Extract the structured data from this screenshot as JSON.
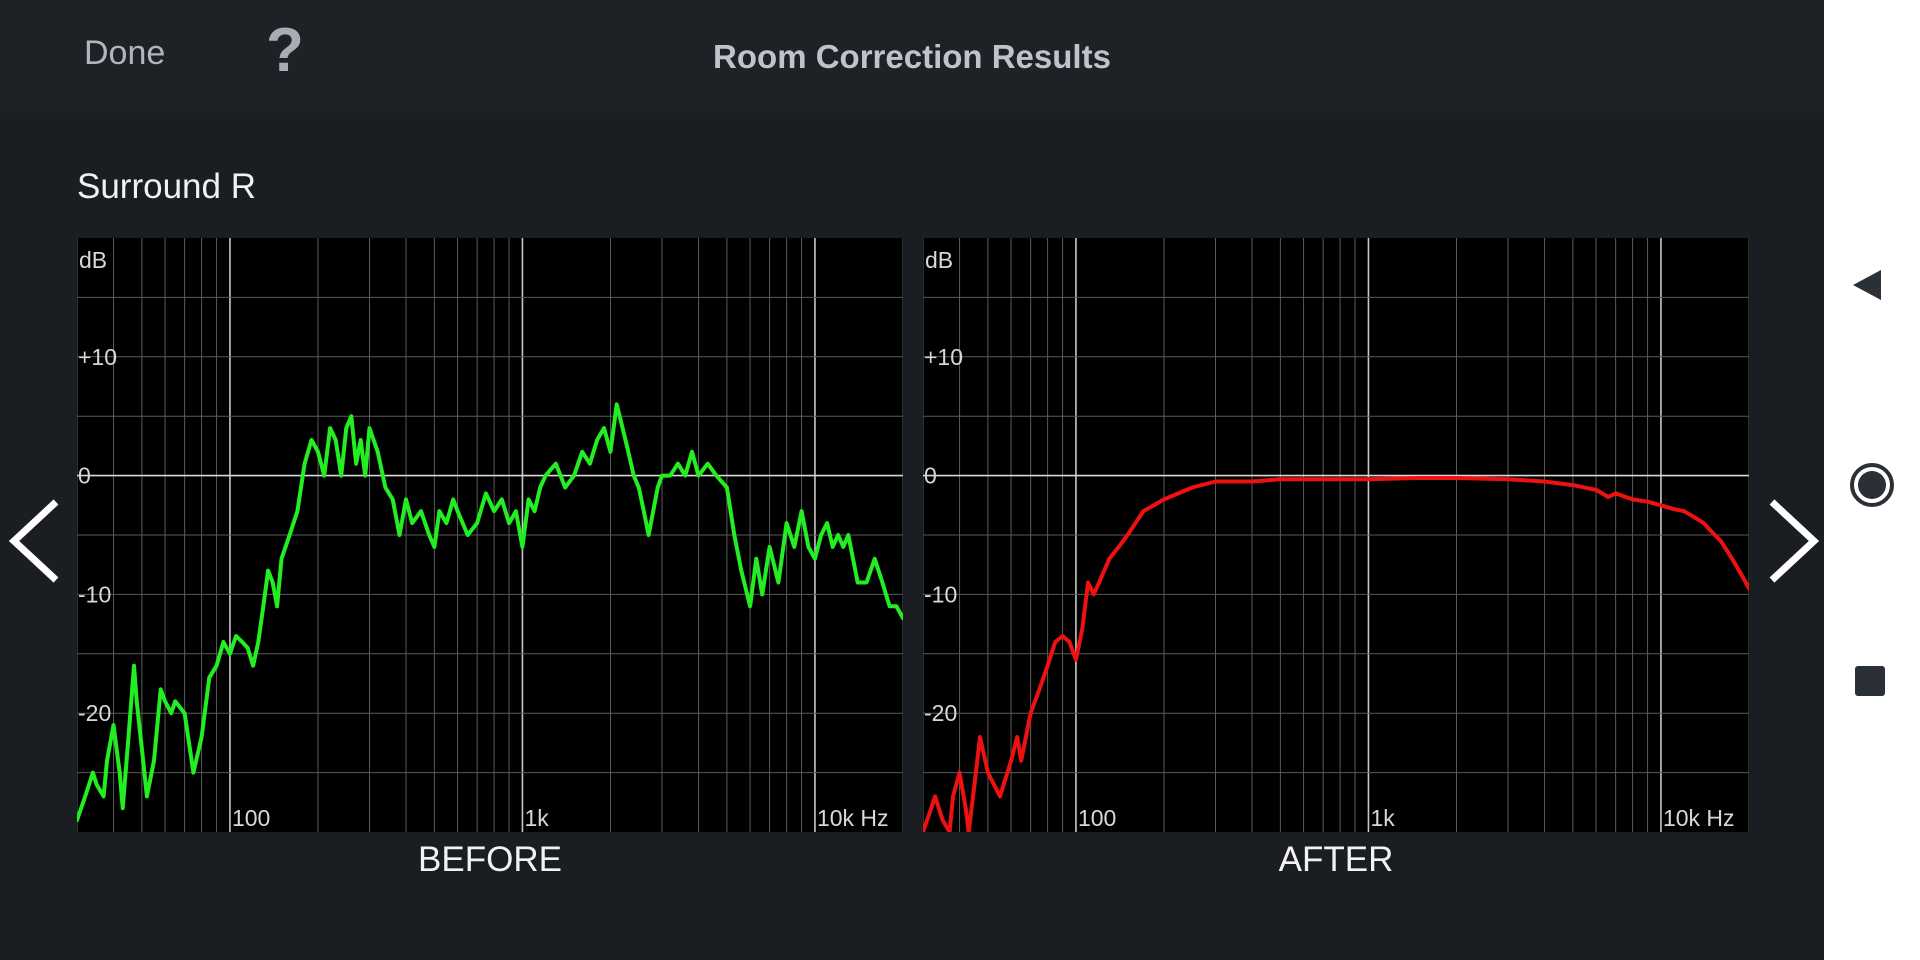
{
  "header": {
    "done_label": "Done",
    "help_label": "?",
    "title": "Room Correction Results"
  },
  "channel_name": "Surround R",
  "charts": [
    {
      "caption": "BEFORE",
      "color": "#22ee22"
    },
    {
      "caption": "AFTER",
      "color": "#ee1111"
    }
  ],
  "axis": {
    "y_unit": "dB",
    "y_ticks": [
      "+10",
      "0",
      "-10",
      "-20"
    ],
    "x_ticks": [
      "100",
      "1k",
      "10k Hz"
    ]
  },
  "chart_data": [
    {
      "type": "line",
      "title": "BEFORE",
      "xlabel": "Hz",
      "ylabel": "dB",
      "x_scale": "log",
      "xlim": [
        30,
        20000
      ],
      "ylim": [
        -30,
        20
      ],
      "grid": true,
      "x": [
        30,
        32,
        34,
        35,
        37,
        38,
        40,
        42,
        43,
        45,
        47,
        48,
        50,
        52,
        55,
        58,
        60,
        63,
        65,
        70,
        75,
        80,
        85,
        90,
        95,
        100,
        105,
        110,
        115,
        120,
        125,
        130,
        135,
        140,
        145,
        150,
        160,
        170,
        180,
        190,
        200,
        210,
        220,
        230,
        240,
        250,
        260,
        270,
        280,
        290,
        300,
        320,
        340,
        360,
        380,
        400,
        420,
        450,
        480,
        500,
        520,
        550,
        580,
        600,
        650,
        700,
        750,
        800,
        850,
        900,
        950,
        1000,
        1050,
        1100,
        1150,
        1200,
        1300,
        1400,
        1500,
        1600,
        1700,
        1800,
        1900,
        2000,
        2100,
        2200,
        2300,
        2400,
        2500,
        2600,
        2700,
        2800,
        2900,
        3000,
        3200,
        3400,
        3600,
        3800,
        4000,
        4300,
        4600,
        5000,
        5300,
        5600,
        6000,
        6300,
        6600,
        7000,
        7500,
        8000,
        8500,
        9000,
        9500,
        10000,
        10500,
        11000,
        11500,
        12000,
        12500,
        13000,
        14000,
        15000,
        16000,
        17000,
        18000,
        19000,
        20000
      ],
      "y": [
        -29,
        -27,
        -25,
        -26,
        -27,
        -24,
        -21,
        -25,
        -28,
        -22,
        -16,
        -19,
        -23,
        -27,
        -24,
        -18,
        -19,
        -20,
        -19,
        -20,
        -25,
        -22,
        -17,
        -16,
        -14,
        -15,
        -13.5,
        -14,
        -14.5,
        -16,
        -14,
        -11,
        -8,
        -9,
        -11,
        -7,
        -5,
        -3,
        1,
        3,
        2,
        0,
        4,
        3,
        0,
        4,
        5,
        1,
        3,
        0,
        4,
        2,
        -1,
        -2,
        -5,
        -2,
        -4,
        -3,
        -5,
        -6,
        -3,
        -4,
        -2,
        -3,
        -5,
        -4,
        -1.5,
        -3,
        -2,
        -4,
        -3,
        -6,
        -2,
        -3,
        -1,
        0,
        1,
        -1,
        0,
        2,
        1,
        3,
        4,
        2,
        6,
        4,
        2,
        0,
        -1,
        -3,
        -5,
        -3,
        -1,
        0,
        0,
        1,
        0,
        2,
        0,
        1,
        0,
        -1,
        -5,
        -8,
        -11,
        -7,
        -10,
        -6,
        -9,
        -4,
        -6,
        -3,
        -6,
        -7,
        -5,
        -4,
        -6,
        -5,
        -6,
        -5,
        -9,
        -9,
        -7,
        -9,
        -11,
        -11,
        -12
      ]
    },
    {
      "type": "line",
      "title": "AFTER",
      "xlabel": "Hz",
      "ylabel": "dB",
      "x_scale": "log",
      "xlim": [
        30,
        20000
      ],
      "ylim": [
        -30,
        20
      ],
      "grid": true,
      "x": [
        30,
        32,
        33,
        35,
        37,
        38,
        40,
        42,
        43,
        45,
        47,
        50,
        55,
        60,
        63,
        65,
        70,
        75,
        80,
        85,
        90,
        95,
        100,
        105,
        110,
        115,
        120,
        130,
        140,
        150,
        170,
        200,
        250,
        300,
        400,
        500,
        700,
        1000,
        1500,
        2000,
        3000,
        4000,
        5000,
        6000,
        6300,
        6600,
        7000,
        8000,
        9000,
        10000,
        11000,
        12000,
        13000,
        14000,
        15000,
        16000,
        17000,
        18000,
        19000,
        20000
      ],
      "y": [
        -30,
        -28,
        -27,
        -29,
        -30,
        -27,
        -25,
        -28,
        -30,
        -26,
        -22,
        -25,
        -27,
        -24,
        -22,
        -24,
        -20,
        -18,
        -16,
        -14,
        -13.5,
        -14,
        -15.5,
        -13,
        -9,
        -10,
        -9,
        -7,
        -6,
        -5,
        -3,
        -2,
        -1,
        -0.5,
        -0.5,
        -0.3,
        -0.3,
        -0.3,
        -0.2,
        -0.2,
        -0.3,
        -0.5,
        -0.8,
        -1.2,
        -1.5,
        -1.8,
        -1.5,
        -2,
        -2.2,
        -2.5,
        -2.8,
        -3,
        -3.5,
        -4,
        -4.8,
        -5.5,
        -6.5,
        -7.5,
        -8.5,
        -9.5
      ]
    }
  ]
}
